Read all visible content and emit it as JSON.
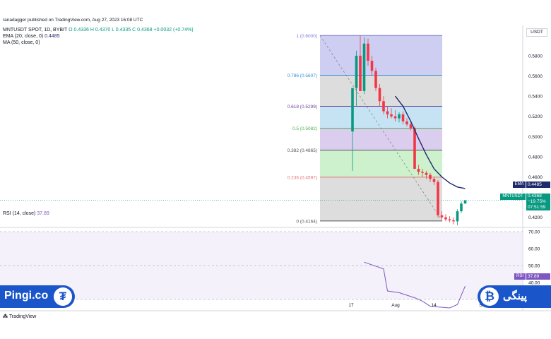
{
  "published": "ranadagger published on TradingView.com, Aug 27, 2023 16:08 UTC",
  "header": {
    "symbol": "MNTUSDT SPOT, 1D, BYBIT",
    "ohlc": "O 0.4336 H 0.4370 L 0.4335 C 0.4368 +0.0032 (+0.74%)",
    "ema": "EMA (20, close, 0)",
    "ema_value": "0.4485",
    "ma": "MA (50, close, 0)"
  },
  "currency": "USDT",
  "rsi": {
    "label": "RSI (14, close)",
    "value": "37.89",
    "tag": "RSI"
  },
  "price_box": {
    "symbol": "MNTUSDT",
    "price": "0.4368",
    "change": "−19.75%",
    "countdown": "07:51:59"
  },
  "ema_tag": {
    "label": "EMA",
    "value": "0.4485"
  },
  "brand": {
    "left": "Pingi.co",
    "right": "پینگی",
    "tether_glyph": "₮",
    "btc_glyph": "₿"
  },
  "tradingview": "TradingView",
  "colors": {
    "up": "#089981",
    "down": "#f23645",
    "ema": "#1e2a6e",
    "rsi": "#7e57c2"
  },
  "chart_data": {
    "type": "candlestick",
    "price_axis": {
      "min": 0.41,
      "max": 0.61,
      "ticks": [
        0.42,
        0.44,
        0.46,
        0.48,
        0.5,
        0.52,
        0.54,
        0.56,
        0.58
      ]
    },
    "x_ticks": [
      "17",
      "Aug",
      "14",
      "Sep"
    ],
    "fib_levels": [
      {
        "ratio": "1",
        "price": 0.6,
        "label": "1 (0.6000)",
        "color": "#7b7bd6",
        "fill": "#c9c9f2"
      },
      {
        "ratio": "0.786",
        "price": 0.5607,
        "label": "0.786 (0.5607)",
        "color": "#2f8fd0",
        "fill": "#d9d9d9"
      },
      {
        "ratio": "0.618",
        "price": 0.5299,
        "label": "0.618 (0.5299)",
        "color": "#6a3fa0",
        "fill": "#bfe0f2"
      },
      {
        "ratio": "0.5",
        "price": 0.5082,
        "label": "0.5 (0.5082)",
        "color": "#4caf50",
        "fill": "#d6c8ec"
      },
      {
        "ratio": "0.382",
        "price": 0.4865,
        "label": "0.382 (0.4865)",
        "color": "#555555",
        "fill": "#c8efc8"
      },
      {
        "ratio": "0.236",
        "price": 0.4597,
        "label": "0.236 (0.4597)",
        "color": "#e57373",
        "fill": "#d9d9d9"
      },
      {
        "ratio": "0",
        "price": 0.4164,
        "label": "0 (0.4164)",
        "color": "#555555",
        "fill": "#f5c6c6"
      }
    ],
    "candles": [
      {
        "o": 0.505,
        "h": 0.548,
        "l": 0.466,
        "c": 0.548
      },
      {
        "o": 0.548,
        "h": 0.585,
        "l": 0.53,
        "c": 0.58
      },
      {
        "o": 0.58,
        "h": 0.6,
        "l": 0.545,
        "c": 0.545
      },
      {
        "o": 0.545,
        "h": 0.598,
        "l": 0.542,
        "c": 0.592
      },
      {
        "o": 0.592,
        "h": 0.597,
        "l": 0.57,
        "c": 0.575
      },
      {
        "o": 0.575,
        "h": 0.58,
        "l": 0.56,
        "c": 0.565
      },
      {
        "o": 0.565,
        "h": 0.568,
        "l": 0.545,
        "c": 0.548
      },
      {
        "o": 0.548,
        "h": 0.552,
        "l": 0.53,
        "c": 0.535
      },
      {
        "o": 0.535,
        "h": 0.54,
        "l": 0.522,
        "c": 0.525
      },
      {
        "o": 0.525,
        "h": 0.53,
        "l": 0.518,
        "c": 0.522
      },
      {
        "o": 0.522,
        "h": 0.528,
        "l": 0.518,
        "c": 0.52
      },
      {
        "o": 0.52,
        "h": 0.526,
        "l": 0.515,
        "c": 0.518
      },
      {
        "o": 0.518,
        "h": 0.524,
        "l": 0.514,
        "c": 0.522
      },
      {
        "o": 0.522,
        "h": 0.525,
        "l": 0.512,
        "c": 0.515
      },
      {
        "o": 0.515,
        "h": 0.518,
        "l": 0.51,
        "c": 0.512
      },
      {
        "o": 0.512,
        "h": 0.514,
        "l": 0.506,
        "c": 0.508
      },
      {
        "o": 0.508,
        "h": 0.51,
        "l": 0.468,
        "c": 0.468
      },
      {
        "o": 0.468,
        "h": 0.472,
        "l": 0.462,
        "c": 0.465
      },
      {
        "o": 0.465,
        "h": 0.468,
        "l": 0.46,
        "c": 0.464
      },
      {
        "o": 0.464,
        "h": 0.466,
        "l": 0.458,
        "c": 0.462
      },
      {
        "o": 0.462,
        "h": 0.464,
        "l": 0.455,
        "c": 0.458
      },
      {
        "o": 0.458,
        "h": 0.46,
        "l": 0.452,
        "c": 0.455
      },
      {
        "o": 0.455,
        "h": 0.457,
        "l": 0.42,
        "c": 0.422
      },
      {
        "o": 0.422,
        "h": 0.426,
        "l": 0.418,
        "c": 0.42
      },
      {
        "o": 0.42,
        "h": 0.423,
        "l": 0.416,
        "c": 0.418
      },
      {
        "o": 0.418,
        "h": 0.421,
        "l": 0.415,
        "c": 0.417
      },
      {
        "o": 0.417,
        "h": 0.42,
        "l": 0.413,
        "c": 0.416
      },
      {
        "o": 0.416,
        "h": 0.428,
        "l": 0.412,
        "c": 0.426
      },
      {
        "o": 0.426,
        "h": 0.436,
        "l": 0.424,
        "c": 0.4336
      },
      {
        "o": 0.4336,
        "h": 0.437,
        "l": 0.4335,
        "c": 0.4368
      }
    ],
    "ema": [
      {
        "i": 11,
        "v": 0.54
      },
      {
        "i": 13,
        "v": 0.53
      },
      {
        "i": 15,
        "v": 0.515
      },
      {
        "i": 17,
        "v": 0.498
      },
      {
        "i": 19,
        "v": 0.482
      },
      {
        "i": 21,
        "v": 0.468
      },
      {
        "i": 23,
        "v": 0.46
      },
      {
        "i": 25,
        "v": 0.454
      },
      {
        "i": 27,
        "v": 0.45
      },
      {
        "i": 29,
        "v": 0.4485
      }
    ],
    "rsi_axis": {
      "min": 25,
      "max": 70,
      "ticks": [
        30,
        40,
        50,
        60,
        70
      ],
      "labels": [
        "30.00",
        "40.00",
        "50.00",
        "60.00",
        "70.00"
      ]
    },
    "rsi_series": [
      {
        "i": 3,
        "v": 52
      },
      {
        "i": 8,
        "v": 48
      },
      {
        "i": 9,
        "v": 35
      },
      {
        "i": 12,
        "v": 34
      },
      {
        "i": 16,
        "v": 31
      },
      {
        "i": 18,
        "v": 29
      },
      {
        "i": 20,
        "v": 26
      },
      {
        "i": 25,
        "v": 25
      },
      {
        "i": 27,
        "v": 27
      },
      {
        "i": 29,
        "v": 37.89
      }
    ]
  }
}
